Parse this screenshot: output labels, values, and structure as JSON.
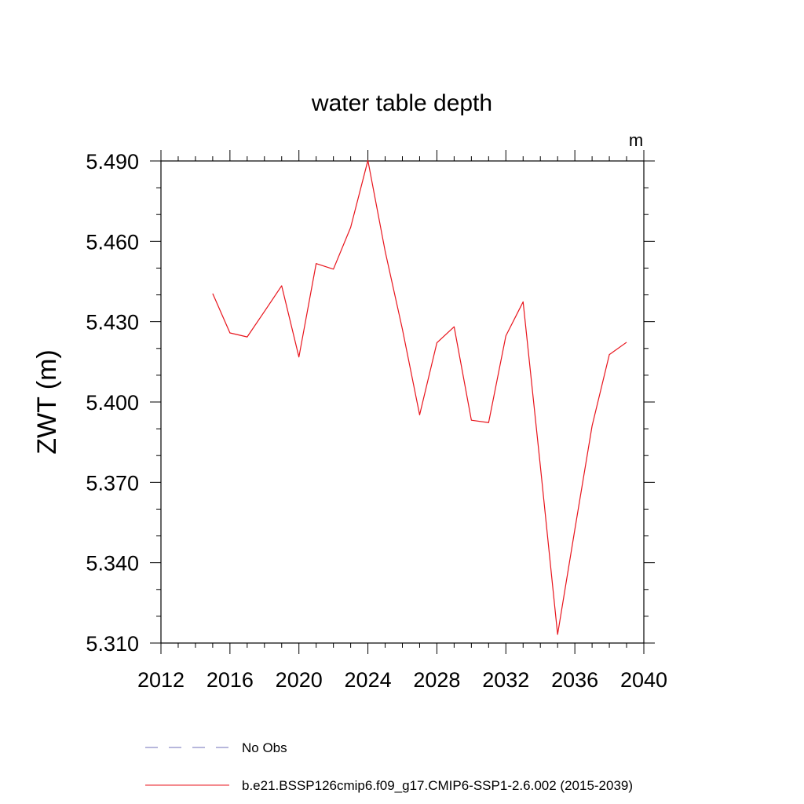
{
  "chart_data": {
    "type": "line",
    "title": "water table depth",
    "units_label": "m",
    "ylabel": "ZWT  (m)",
    "xlabel": "",
    "xlim": [
      2012,
      2040
    ],
    "ylim": [
      5.31,
      5.49
    ],
    "x_ticks": [
      "2012",
      "2016",
      "2020",
      "2024",
      "2028",
      "2032",
      "2036",
      "2040"
    ],
    "y_ticks": [
      "5.310",
      "5.340",
      "5.370",
      "5.400",
      "5.430",
      "5.460",
      "5.490"
    ],
    "grid": false,
    "legend_position": "bottom",
    "series": [
      {
        "name": "b.e21.BSSP126cmip6.f09_g17.CMIP6-SSP1-2.6.002 (2015-2039)",
        "color": "#e8141c",
        "style": "solid",
        "x": [
          2015,
          2016,
          2017,
          2018,
          2019,
          2020,
          2021,
          2022,
          2023,
          2024,
          2025,
          2026,
          2027,
          2028,
          2029,
          2030,
          2031,
          2032,
          2033,
          2034,
          2035,
          2036,
          2037,
          2038,
          2039
        ],
        "values": [
          5.4405,
          5.4258,
          5.4243,
          5.4338,
          5.4434,
          5.4168,
          5.4517,
          5.4496,
          5.4652,
          5.4902,
          5.4563,
          5.4272,
          5.3952,
          5.4221,
          5.4281,
          5.3932,
          5.3923,
          5.4247,
          5.4374,
          5.3761,
          5.3132,
          5.3524,
          5.3911,
          5.4177,
          5.4223
        ]
      }
    ],
    "legend": [
      {
        "label": "No Obs",
        "color": "#6f6fb8",
        "style": "dashed"
      },
      {
        "label": "b.e21.BSSP126cmip6.f09_g17.CMIP6-SSP1-2.6.002 (2015-2039)",
        "color": "#e8141c",
        "style": "solid"
      }
    ]
  }
}
